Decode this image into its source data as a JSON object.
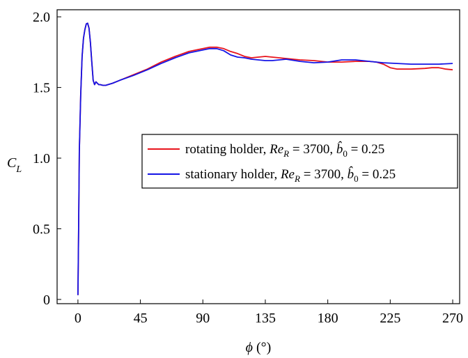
{
  "chart_data": {
    "type": "line",
    "xlabel": {
      "symbol": "ϕ",
      "unit": " (°)"
    },
    "ylabel": {
      "main": "C",
      "sub": "L"
    },
    "xlim": [
      -15,
      275
    ],
    "ylim": [
      -0.03,
      2.05
    ],
    "xticks": [
      0,
      45,
      90,
      135,
      180,
      225,
      270
    ],
    "yticks": [
      0,
      0.5,
      1.0,
      1.5,
      2.0
    ],
    "ytick_labels": [
      "0",
      "0.5",
      "1.0",
      "1.5",
      "2.0"
    ],
    "xtick_labels": [
      "0",
      "45",
      "90",
      "135",
      "180",
      "225",
      "270"
    ],
    "grid": false,
    "legend_position": "center-right",
    "series": [
      {
        "name": "rotating holder, Re_R = 3700, b̂_0 = 0.25",
        "legend": {
          "prefix": "rotating holder, ",
          "re": "Re",
          "re_sub": "R",
          "eq1": " = 3700, ",
          "b": "b̂",
          "b_sub": "0",
          "eq2": " = 0.25"
        },
        "color": "#e8141c",
        "x": [
          0,
          0.5,
          1,
          2,
          3,
          4,
          5,
          6,
          7,
          8,
          9,
          10,
          11,
          12,
          13,
          14,
          15,
          16,
          18,
          20,
          25,
          30,
          40,
          50,
          60,
          70,
          80,
          90,
          95,
          100,
          105,
          110,
          115,
          120,
          125,
          130,
          135,
          140,
          150,
          160,
          170,
          180,
          190,
          200,
          210,
          215,
          220,
          225,
          230,
          240,
          250,
          255,
          260,
          265,
          270
        ],
        "y": [
          0.03,
          0.5,
          1.05,
          1.45,
          1.72,
          1.85,
          1.91,
          1.95,
          1.955,
          1.92,
          1.82,
          1.68,
          1.55,
          1.52,
          1.54,
          1.53,
          1.52,
          1.52,
          1.515,
          1.515,
          1.53,
          1.55,
          1.59,
          1.63,
          1.68,
          1.72,
          1.755,
          1.775,
          1.785,
          1.785,
          1.775,
          1.755,
          1.74,
          1.72,
          1.71,
          1.715,
          1.72,
          1.715,
          1.705,
          1.695,
          1.69,
          1.68,
          1.68,
          1.685,
          1.685,
          1.68,
          1.665,
          1.64,
          1.63,
          1.63,
          1.635,
          1.64,
          1.64,
          1.63,
          1.625
        ]
      },
      {
        "name": "stationary holder, Re_R = 3700, b̂_0 = 0.25",
        "legend": {
          "prefix": "stationary holder, ",
          "re": "Re",
          "re_sub": "R",
          "eq1": " = 3700, ",
          "b": "b̂",
          "b_sub": "0",
          "eq2": " = 0.25"
        },
        "color": "#1414e6",
        "x": [
          0,
          0.5,
          1,
          2,
          3,
          4,
          5,
          6,
          7,
          8,
          9,
          10,
          11,
          12,
          13,
          14,
          15,
          16,
          18,
          20,
          25,
          30,
          40,
          50,
          60,
          70,
          80,
          90,
          95,
          100,
          105,
          110,
          115,
          120,
          125,
          130,
          135,
          140,
          150,
          160,
          170,
          180,
          190,
          200,
          210,
          220,
          230,
          240,
          250,
          260,
          270
        ],
        "y": [
          0.03,
          0.5,
          1.05,
          1.45,
          1.72,
          1.85,
          1.91,
          1.95,
          1.955,
          1.92,
          1.82,
          1.68,
          1.55,
          1.52,
          1.54,
          1.53,
          1.52,
          1.52,
          1.515,
          1.515,
          1.53,
          1.55,
          1.585,
          1.625,
          1.67,
          1.71,
          1.745,
          1.765,
          1.775,
          1.775,
          1.76,
          1.73,
          1.715,
          1.71,
          1.7,
          1.695,
          1.69,
          1.69,
          1.7,
          1.685,
          1.675,
          1.68,
          1.695,
          1.695,
          1.685,
          1.675,
          1.67,
          1.665,
          1.665,
          1.665,
          1.67
        ]
      }
    ]
  }
}
